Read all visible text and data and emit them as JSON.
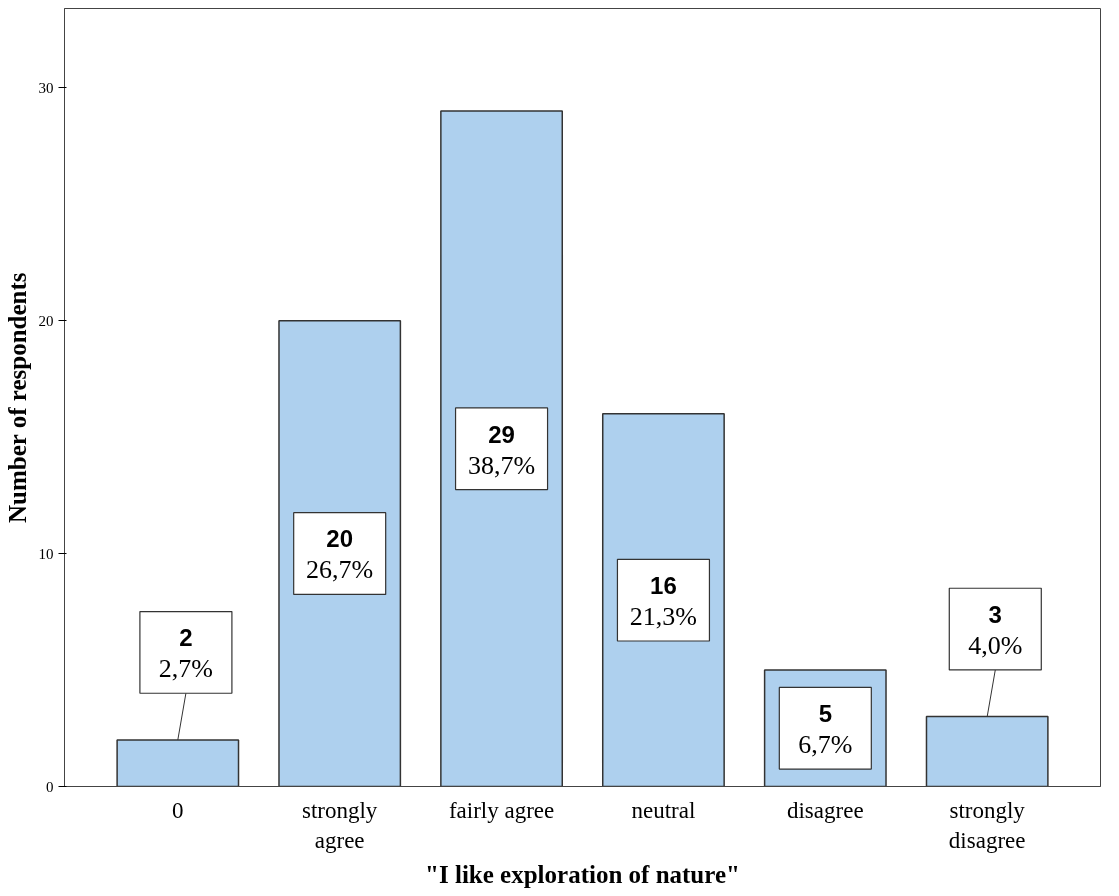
{
  "chart_data": {
    "type": "bar",
    "xlabel": "\"I like exploration of nature\"",
    "ylabel": "Number of respondents",
    "categories": [
      "0",
      "strongly\nagree",
      "fairly agree",
      "neutral",
      "disagree",
      "strongly\ndisagree"
    ],
    "values": [
      2,
      20,
      29,
      16,
      5,
      3
    ],
    "value_labels": [
      "2\n2,7%",
      "20\n26,7%",
      "29\n38,7%",
      "16\n21,3%",
      "5\n6,7%",
      "3\n4,0%"
    ],
    "color": "#aed0ee",
    "ylim": [
      0,
      33.4
    ],
    "yticks": [
      0,
      10,
      20,
      30
    ],
    "grid": false
  }
}
